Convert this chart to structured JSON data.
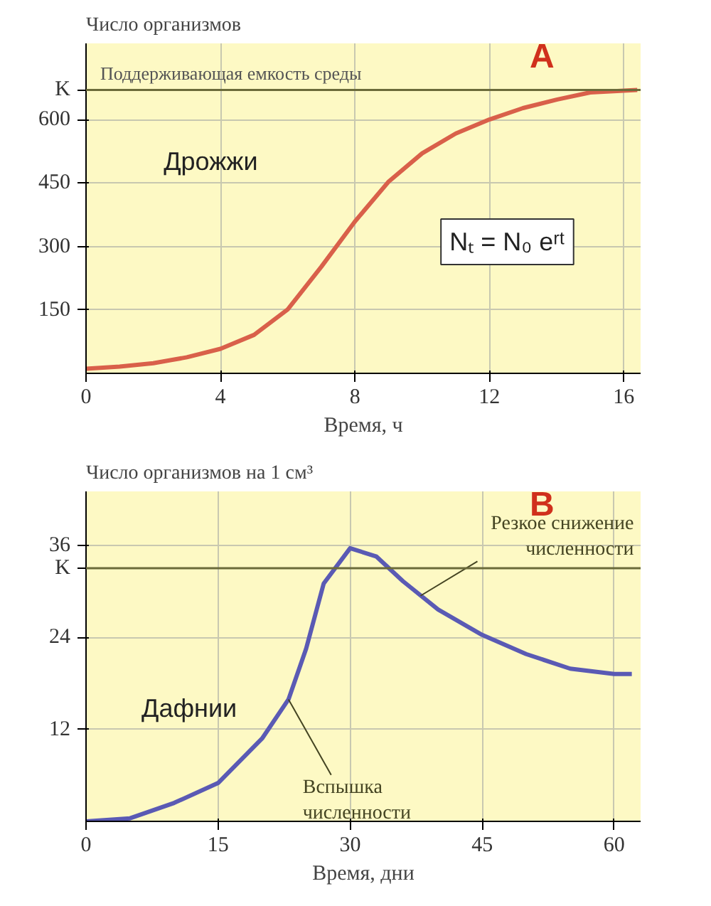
{
  "chart_data": [
    {
      "type": "line",
      "ylabel": "Число организмов",
      "xlabel": "Время, ч",
      "x": [
        0,
        1,
        2,
        3,
        4,
        5,
        6,
        7,
        8,
        9,
        10,
        11,
        12,
        13,
        14,
        15,
        16.4
      ],
      "series": [
        {
          "color": "#d9604a",
          "values": [
            11,
            16,
            24,
            38,
            58,
            91,
            151,
            252,
            359,
            453,
            520,
            567,
            600,
            627,
            647,
            664,
            670
          ]
        }
      ],
      "xlim": [
        0,
        16.5
      ],
      "ylim": [
        0,
        780
      ],
      "xticks": [
        0,
        4,
        8,
        12,
        16
      ],
      "yticks": [
        150,
        300,
        450,
        600,
        {
          "value": 670,
          "label": "K"
        }
      ],
      "ref_lines": [
        {
          "axis": "y",
          "value": 670,
          "label": "Поддерживающая емкость среды",
          "color": "#6b6b3a"
        }
      ],
      "annotations": [
        "A",
        "Дрожжи",
        "Nₜ = N₀ eʳᵗ"
      ],
      "grid": true
    },
    {
      "type": "line",
      "ylabel": "Число организмов на 1 см³",
      "xlabel": "Время, дни",
      "x": [
        0,
        5,
        10,
        15,
        20,
        23,
        25,
        27,
        30,
        33,
        36,
        40,
        45,
        50,
        55,
        60,
        62
      ],
      "series": [
        {
          "color": "#5a5ab4",
          "values": [
            0,
            0.4,
            2.4,
            5,
            10.8,
            15.9,
            22.5,
            31,
            35.6,
            34.5,
            31.3,
            27.6,
            24.3,
            21.8,
            19.9,
            19.2,
            19.2
          ]
        }
      ],
      "xlim": [
        0,
        63
      ],
      "ylim": [
        0,
        43
      ],
      "xticks": [
        0,
        15,
        30,
        45,
        60
      ],
      "yticks": [
        12,
        24,
        {
          "value": 33,
          "label": "K"
        },
        36
      ],
      "ref_lines": [
        {
          "axis": "y",
          "value": 33,
          "color": "#6b6b3a"
        }
      ],
      "annotations": [
        "B",
        "Дафнии",
        {
          "text": "Вспышка численности",
          "x": 23,
          "y": 15.9
        },
        {
          "text": "Резкое снижение численности",
          "x": 38,
          "y": 29.4
        }
      ],
      "grid": true
    }
  ]
}
